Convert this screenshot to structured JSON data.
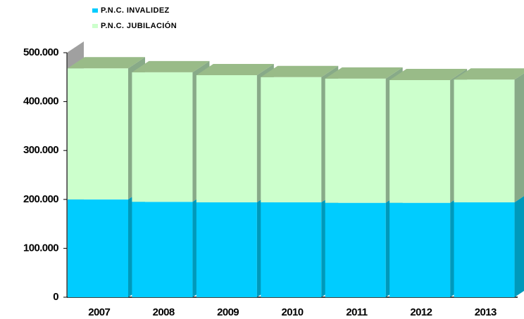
{
  "chart_data": {
    "type": "bar",
    "stacked": true,
    "categories": [
      "2007",
      "2008",
      "2009",
      "2010",
      "2011",
      "2012",
      "2013"
    ],
    "series": [
      {
        "name": "P.N.C. INVALIDEZ",
        "color": "#00ccff",
        "values": [
          200000,
          195000,
          194000,
          194000,
          193000,
          193000,
          194000
        ]
      },
      {
        "name": "P.N.C. JUBILACIÓN",
        "color": "#ccffcc",
        "values": [
          268000,
          265000,
          260000,
          256000,
          254000,
          251000,
          251000
        ]
      }
    ],
    "ylim": [
      0,
      500000
    ],
    "yticks": [
      0,
      {
        "value": 100000,
        "label": "100.000"
      },
      {
        "value": 200000,
        "label": "200.000"
      },
      {
        "value": 300000,
        "label": "300.000"
      },
      {
        "value": 400000,
        "label": "400.000"
      },
      {
        "value": 500000,
        "label": "500.000"
      }
    ]
  }
}
